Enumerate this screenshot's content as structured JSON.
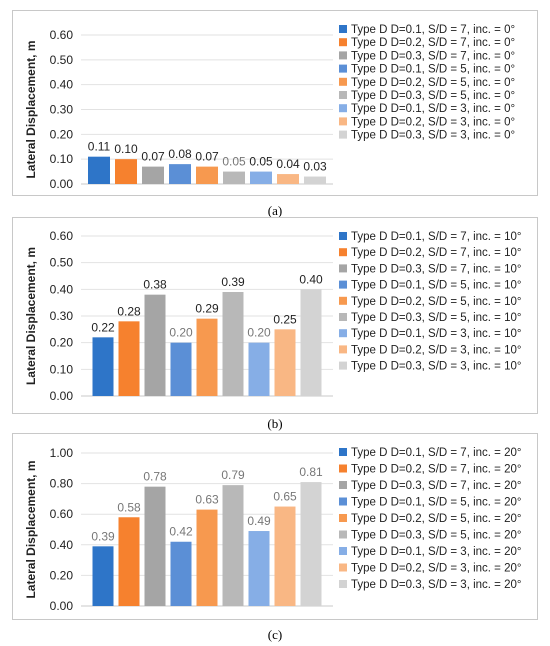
{
  "chart_data": [
    {
      "type": "bar",
      "ylabel": "Lateral Displacement, m",
      "ylim": [
        0,
        0.6
      ],
      "yticks": [
        "0.00",
        "0.10",
        "0.20",
        "0.30",
        "0.40",
        "0.50",
        "0.60"
      ],
      "legend_position": "right",
      "grid": true,
      "series": [
        {
          "name": "Type D D=0.1, S/D = 7, inc. = 0°",
          "value": 0.11,
          "label": "0.11",
          "color": "#2e75c8"
        },
        {
          "name": "Type D D=0.2, S/D = 7, inc. = 0°",
          "value": 0.1,
          "label": "0.10",
          "color": "#f6812e"
        },
        {
          "name": "Type D D=0.3, S/D = 7, inc. = 0°",
          "value": 0.07,
          "label": "0.07",
          "color": "#a5a5a5"
        },
        {
          "name": "Type D D=0.1, S/D = 5, inc. = 0°",
          "value": 0.08,
          "label": "0.08",
          "color": "#5b8fd6"
        },
        {
          "name": "Type D D=0.2, S/D = 5, inc. = 0°",
          "value": 0.07,
          "label": "0.07",
          "color": "#f7994f"
        },
        {
          "name": "Type D D=0.3, S/D = 5, inc. = 0°",
          "value": 0.05,
          "label": "0.05",
          "color": "#b8b8b8"
        },
        {
          "name": "Type D D=0.1, S/D = 3, inc. = 0°",
          "value": 0.05,
          "label": "0.05",
          "color": "#86aee6"
        },
        {
          "name": "Type D D=0.2, S/D = 3, inc. = 0°",
          "value": 0.04,
          "label": "0.04",
          "color": "#f9b784"
        },
        {
          "name": "Type D D=0.3, S/D = 3, inc. = 0°",
          "value": 0.03,
          "label": "0.03",
          "color": "#d3d3d3"
        }
      ]
    },
    {
      "type": "bar",
      "ylabel": "Lateral Displacement, m",
      "ylim": [
        0,
        0.6
      ],
      "yticks": [
        "0.00",
        "0.10",
        "0.20",
        "0.30",
        "0.40",
        "0.50",
        "0.60"
      ],
      "legend_position": "right",
      "grid": true,
      "series": [
        {
          "name": "Type D D=0.1, S/D = 7, inc. = 10°",
          "value": 0.22,
          "label": "0.22",
          "color": "#2e75c8"
        },
        {
          "name": "Type D D=0.2, S/D = 7, inc. = 10°",
          "value": 0.28,
          "label": "0.28",
          "color": "#f6812e"
        },
        {
          "name": "Type D D=0.3, S/D = 7, inc. = 10°",
          "value": 0.38,
          "label": "0.38",
          "color": "#a5a5a5"
        },
        {
          "name": "Type D D=0.1, S/D = 5, inc. = 10°",
          "value": 0.2,
          "label": "0.20",
          "color": "#5b8fd6"
        },
        {
          "name": "Type D D=0.2, S/D = 5, inc. = 10°",
          "value": 0.29,
          "label": "0.29",
          "color": "#f7994f"
        },
        {
          "name": "Type D D=0.3, S/D = 5, inc. = 10°",
          "value": 0.39,
          "label": "0.39",
          "color": "#b8b8b8"
        },
        {
          "name": "Type D D=0.1, S/D = 3, inc. = 10°",
          "value": 0.2,
          "label": "0.20",
          "color": "#86aee6"
        },
        {
          "name": "Type D D=0.2, S/D = 3, inc. = 10°",
          "value": 0.25,
          "label": "0.25",
          "color": "#f9b784"
        },
        {
          "name": "Type D D=0.3, S/D = 3, inc. = 10°",
          "value": 0.4,
          "label": "0.40",
          "color": "#d3d3d3"
        }
      ]
    },
    {
      "type": "bar",
      "ylabel": "Lateral Displacement, m",
      "ylim": [
        0,
        1.0
      ],
      "yticks": [
        "0.00",
        "0.20",
        "0.40",
        "0.60",
        "0.80",
        "1.00"
      ],
      "legend_position": "right",
      "grid": true,
      "series": [
        {
          "name": "Type D D=0.1, S/D = 7, inc. = 20°",
          "value": 0.39,
          "label": "0.39",
          "color": "#2e75c8"
        },
        {
          "name": "Type D D=0.2, S/D = 7, inc. = 20°",
          "value": 0.58,
          "label": "0.58",
          "color": "#f6812e"
        },
        {
          "name": "Type D D=0.3, S/D = 7, inc. = 20°",
          "value": 0.78,
          "label": "0.78",
          "color": "#a5a5a5"
        },
        {
          "name": "Type D D=0.1, S/D = 5, inc. = 20°",
          "value": 0.42,
          "label": "0.42",
          "color": "#5b8fd6"
        },
        {
          "name": "Type D D=0.2, S/D = 5, inc. = 20°",
          "value": 0.63,
          "label": "0.63",
          "color": "#f7994f"
        },
        {
          "name": "Type D D=0.3, S/D = 5, inc. = 20°",
          "value": 0.79,
          "label": "0.79",
          "color": "#b8b8b8"
        },
        {
          "name": "Type D D=0.1, S/D = 3, inc. = 20°",
          "value": 0.49,
          "label": "0.49",
          "color": "#86aee6"
        },
        {
          "name": "Type D D=0.2, S/D = 3, inc. = 20°",
          "value": 0.65,
          "label": "0.65",
          "color": "#f9b784"
        },
        {
          "name": "Type D D=0.3, S/D = 3, inc. = 20°",
          "value": 0.81,
          "label": "0.81",
          "color": "#d3d3d3"
        }
      ]
    }
  ],
  "captions": [
    "(a)",
    "(b)",
    "(c)"
  ]
}
